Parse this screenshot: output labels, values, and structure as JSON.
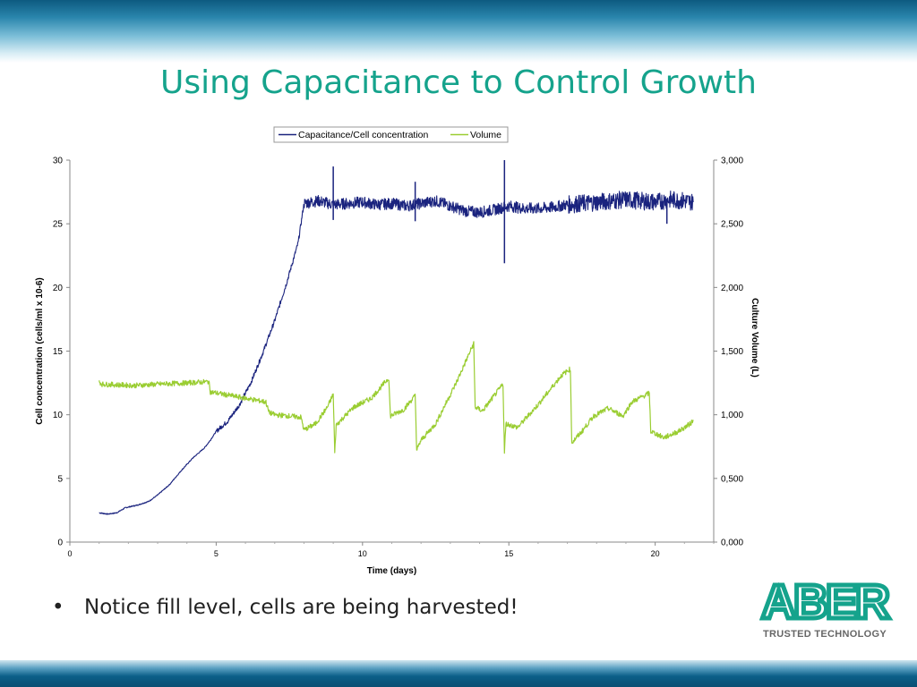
{
  "slide": {
    "title": "Using Capacitance to Control Growth",
    "bullet": "Notice fill level, cells are being harvested!",
    "bullet_marker": "•"
  },
  "logo": {
    "brand": "ABER",
    "tagline": "TRUSTED TECHNOLOGY",
    "color": "#15a38c"
  },
  "chart_data": {
    "type": "line",
    "title": "",
    "xlabel": "Time (days)",
    "ylabel": "Cell concentration (cells/ml x 10-6)",
    "y2label": "Culture Volume (L)",
    "xlim": [
      0,
      22
    ],
    "ylim": [
      0,
      30
    ],
    "y2lim": [
      0,
      3000
    ],
    "xticks": [
      0,
      5,
      10,
      15,
      20
    ],
    "yticks": [
      0,
      5,
      10,
      15,
      20,
      25,
      30
    ],
    "y2ticks": [
      "0,000",
      "0,500",
      "1,000",
      "1,500",
      "2,000",
      "2,500",
      "3,000"
    ],
    "legend_position": "top-center",
    "series": [
      {
        "name": "Capacitance/Cell concentration",
        "axis": "left",
        "color": "#1a237e",
        "points": [
          [
            1.0,
            2.3
          ],
          [
            1.3,
            2.2
          ],
          [
            1.6,
            2.3
          ],
          [
            1.9,
            2.7
          ],
          [
            2.3,
            2.9
          ],
          [
            2.7,
            3.2
          ],
          [
            3.0,
            3.7
          ],
          [
            3.4,
            4.5
          ],
          [
            3.8,
            5.6
          ],
          [
            4.2,
            6.6
          ],
          [
            4.6,
            7.4
          ],
          [
            4.8,
            8.0
          ],
          [
            5.0,
            8.7
          ],
          [
            5.4,
            9.5
          ],
          [
            5.8,
            10.8
          ],
          [
            6.2,
            12.6
          ],
          [
            6.6,
            14.9
          ],
          [
            7.0,
            17.4
          ],
          [
            7.4,
            20.3
          ],
          [
            7.8,
            23.5
          ],
          [
            8.0,
            26.6
          ],
          [
            8.5,
            26.8
          ],
          [
            9.0,
            26.5
          ],
          [
            9.5,
            26.6
          ],
          [
            10.0,
            26.7
          ],
          [
            10.5,
            26.5
          ],
          [
            11.0,
            26.6
          ],
          [
            11.5,
            26.4
          ],
          [
            12.0,
            26.6
          ],
          [
            12.5,
            26.8
          ],
          [
            13.0,
            26.4
          ],
          [
            13.5,
            26.0
          ],
          [
            14.0,
            25.9
          ],
          [
            14.5,
            26.1
          ],
          [
            15.0,
            26.4
          ],
          [
            15.5,
            26.2
          ],
          [
            16.0,
            26.2
          ],
          [
            16.5,
            26.3
          ],
          [
            17.0,
            26.5
          ],
          [
            17.5,
            26.6
          ],
          [
            18.0,
            26.7
          ],
          [
            18.5,
            26.8
          ],
          [
            19.0,
            26.9
          ],
          [
            19.5,
            26.8
          ],
          [
            20.0,
            26.7
          ],
          [
            20.5,
            26.9
          ],
          [
            21.0,
            26.8
          ],
          [
            21.3,
            26.7
          ]
        ],
        "spikes": [
          [
            9.0,
            29.5
          ],
          [
            9.0,
            25.3
          ],
          [
            11.8,
            28.3
          ],
          [
            11.8,
            25.2
          ],
          [
            14.85,
            30.0
          ],
          [
            14.85,
            21.9
          ],
          [
            20.4,
            25.0
          ]
        ]
      },
      {
        "name": "Volume",
        "axis": "right",
        "color": "#9acd32",
        "points": [
          [
            1.0,
            1260
          ],
          [
            1.1,
            1240
          ],
          [
            2.2,
            1230
          ],
          [
            3.0,
            1240
          ],
          [
            4.0,
            1250
          ],
          [
            4.75,
            1260
          ],
          [
            4.8,
            1180
          ],
          [
            5.5,
            1150
          ],
          [
            6.0,
            1130
          ],
          [
            6.7,
            1100
          ],
          [
            6.8,
            1020
          ],
          [
            7.0,
            1000
          ],
          [
            7.5,
            990
          ],
          [
            7.9,
            980
          ],
          [
            8.0,
            880
          ],
          [
            8.4,
            930
          ],
          [
            8.8,
            1060
          ],
          [
            9.0,
            1160
          ],
          [
            9.05,
            700
          ],
          [
            9.1,
            920
          ],
          [
            9.7,
            1060
          ],
          [
            10.3,
            1130
          ],
          [
            10.9,
            1290
          ],
          [
            10.95,
            990
          ],
          [
            11.4,
            1040
          ],
          [
            11.8,
            1150
          ],
          [
            11.85,
            720
          ],
          [
            12.0,
            800
          ],
          [
            12.5,
            930
          ],
          [
            13.2,
            1250
          ],
          [
            13.8,
            1560
          ],
          [
            13.85,
            1060
          ],
          [
            14.1,
            1030
          ],
          [
            14.8,
            1240
          ],
          [
            14.85,
            710
          ],
          [
            14.9,
            930
          ],
          [
            15.3,
            900
          ],
          [
            16.0,
            1080
          ],
          [
            16.8,
            1310
          ],
          [
            17.1,
            1360
          ],
          [
            17.15,
            780
          ],
          [
            17.5,
            870
          ],
          [
            17.9,
            990
          ],
          [
            18.4,
            1050
          ],
          [
            18.9,
            990
          ],
          [
            19.2,
            1100
          ],
          [
            19.8,
            1170
          ],
          [
            19.85,
            870
          ],
          [
            20.3,
            820
          ],
          [
            20.8,
            870
          ],
          [
            21.2,
            930
          ],
          [
            21.3,
            960
          ]
        ]
      }
    ]
  }
}
